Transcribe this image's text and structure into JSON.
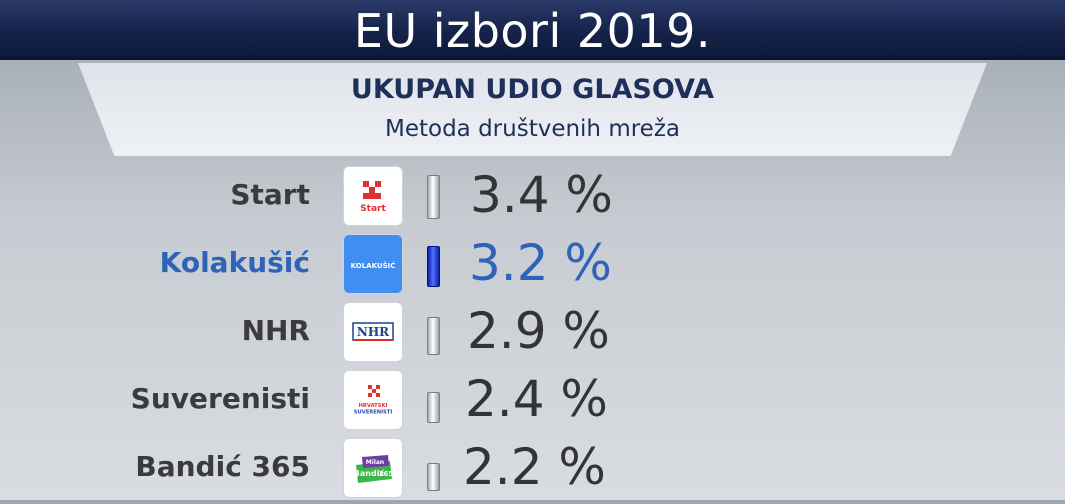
{
  "header": {
    "title": "EU izbori 2019.",
    "subtitle": "UKUPAN UDIO GLASOVA",
    "method": "Metoda društvenih mreža"
  },
  "colors": {
    "title_bar": "#16234a",
    "highlight_text": "#2f63b8",
    "highlight_bar": "#1d3ad8",
    "default_text": "#3b3b3f"
  },
  "rows": [
    {
      "name": "Start",
      "value_text": "3.4 %",
      "highlight": false,
      "logo": {
        "type": "start",
        "text": "Start"
      }
    },
    {
      "name": "Kolakušić",
      "value_text": "3.2 %",
      "highlight": true,
      "logo": {
        "type": "kolakusic",
        "text": "KOLAKUŠIĆ"
      }
    },
    {
      "name": "NHR",
      "value_text": "2.9 %",
      "highlight": false,
      "logo": {
        "type": "nhr",
        "text": "NHR"
      }
    },
    {
      "name": "Suverenisti",
      "value_text": "2.4 %",
      "highlight": false,
      "logo": {
        "type": "suverenisti",
        "text": "HRVATSKI SUVERENISTI"
      }
    },
    {
      "name": "Bandić 365",
      "value_text": "2.2 %",
      "highlight": false,
      "logo": {
        "type": "bandic",
        "text_top": "Milan",
        "text_main": "Bandić",
        "text_num": "365"
      }
    }
  ],
  "chart_data": {
    "type": "bar",
    "title": "UKUPAN UDIO GLASOVA",
    "subtitle": "Metoda društvenih mreža",
    "categories": [
      "Start",
      "Kolakušić",
      "NHR",
      "Suverenisti",
      "Bandić 365"
    ],
    "values": [
      3.4,
      3.2,
      2.9,
      2.4,
      2.2
    ],
    "unit": "%",
    "highlighted_category": "Kolakušić",
    "ylim": [
      0,
      3.4
    ]
  }
}
